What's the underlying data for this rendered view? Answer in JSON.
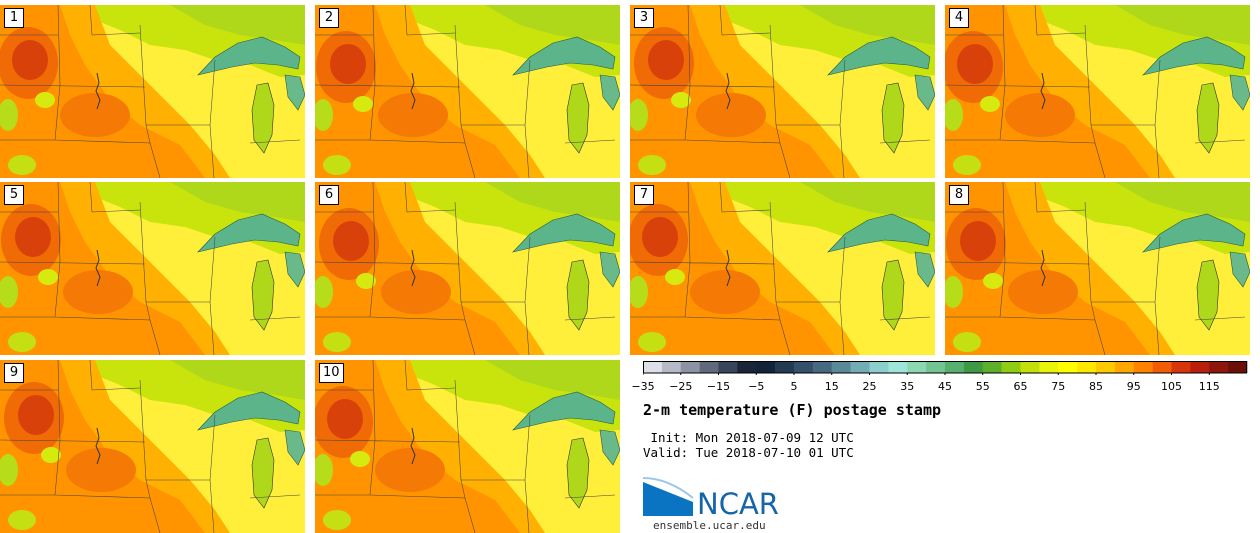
{
  "panels": [
    {
      "label": "1"
    },
    {
      "label": "2"
    },
    {
      "label": "3"
    },
    {
      "label": "4"
    },
    {
      "label": "5"
    },
    {
      "label": "6"
    },
    {
      "label": "7"
    },
    {
      "label": "8"
    },
    {
      "label": "9"
    },
    {
      "label": "10"
    }
  ],
  "colorbar": {
    "ticks": [
      "−35",
      "−25",
      "−15",
      "−5",
      "5",
      "15",
      "25",
      "35",
      "45",
      "55",
      "65",
      "75",
      "85",
      "95",
      "105",
      "115"
    ],
    "colors": [
      "#dde0e8",
      "#b6bac6",
      "#8d93a3",
      "#606a7d",
      "#37445a",
      "#1a2537",
      "#12243a",
      "#223a52",
      "#34506a",
      "#466a80",
      "#5a8a98",
      "#73acb4",
      "#8ccfcc",
      "#9fe6da",
      "#8cd8b2",
      "#72c590",
      "#58b070",
      "#3f9a45",
      "#5eb02a",
      "#90cc14",
      "#c4e00c",
      "#e8f50a",
      "#ffff00",
      "#ffe800",
      "#ffcb00",
      "#ffa800",
      "#ff8200",
      "#f25c05",
      "#d8360a",
      "#b8200c",
      "#8e160c",
      "#6a1008"
    ]
  },
  "title": "2-m temperature (F) postage stamp",
  "init": " Init: Mon 2018-07-09 12 UTC",
  "valid": "Valid: Tue 2018-07-10 01 UTC",
  "logo": {
    "name": "NCAR",
    "url": "ensemble.ucar.edu"
  }
}
